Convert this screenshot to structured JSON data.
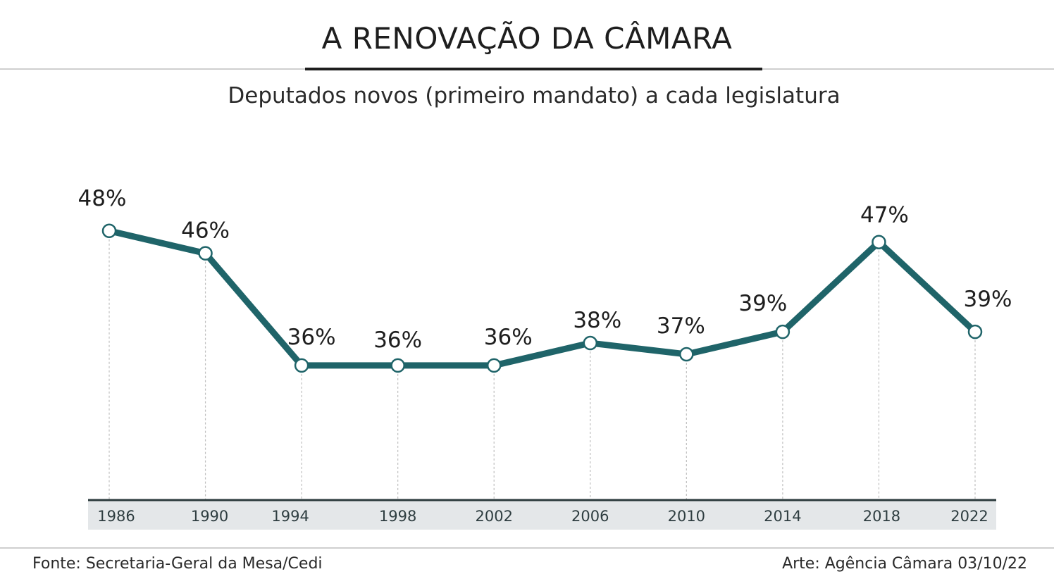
{
  "header": {
    "title": "A RENOVAÇÃO DA CÂMARA",
    "subtitle": "Deputados novos (primeiro mandato) a cada legislatura"
  },
  "footer": {
    "source": "Fonte: Secretaria-Geral da Mesa/Cedi",
    "credit": "Arte: Agência Câmara 03/10/22"
  },
  "colors": {
    "line": "#1f6469",
    "axis_band": "#e4e7e9",
    "axis_line": "#2b3a3c",
    "guide": "#bfbfbf"
  },
  "chart_data": {
    "type": "line",
    "title": "A RENOVAÇÃO DA CÂMARA",
    "subtitle": "Deputados novos (primeiro mandato) a cada legislatura",
    "xlabel": "",
    "ylabel": "",
    "categories": [
      "1986",
      "1990",
      "1994",
      "1998",
      "2002",
      "2006",
      "2010",
      "2014",
      "2018",
      "2022"
    ],
    "series": [
      {
        "name": "Deputados novos",
        "values": [
          48,
          46,
          36,
          36,
          36,
          38,
          37,
          39,
          47,
          39
        ],
        "labels": [
          "48%",
          "46%",
          "36%",
          "36%",
          "36%",
          "38%",
          "37%",
          "39%",
          "47%",
          "39%"
        ]
      }
    ],
    "ylim": [
      24,
      51
    ],
    "grid": false,
    "legend": "none"
  }
}
